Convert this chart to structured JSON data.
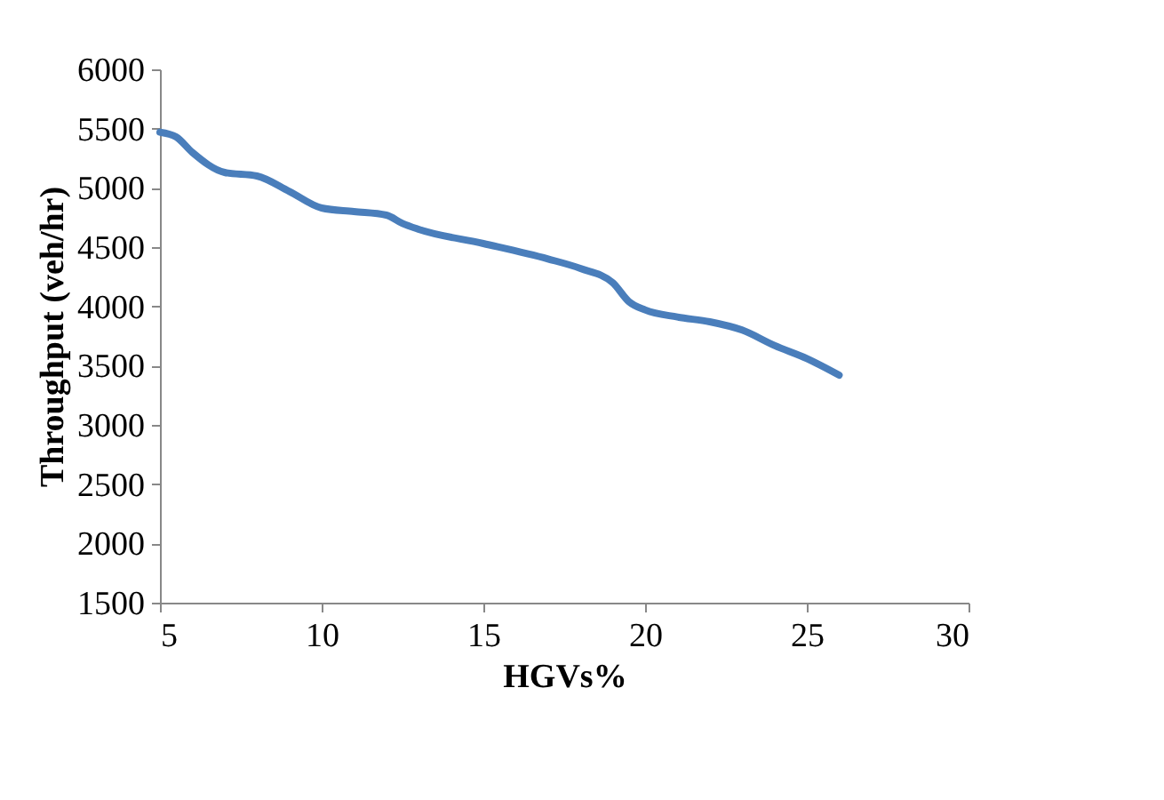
{
  "chart_data": {
    "type": "line",
    "xlabel": "HGVs%",
    "ylabel": "Throughput (veh/hr)",
    "x": [
      5,
      5.5,
      6,
      7,
      8,
      9,
      10,
      11,
      12,
      12.5,
      13,
      15,
      17,
      18,
      19,
      19.5,
      20,
      21,
      22,
      23,
      24,
      25,
      26
    ],
    "series": [
      {
        "color": "#4a7ebb",
        "values": [
          5470,
          5430,
          5300,
          5130,
          5100,
          4970,
          4830,
          4800,
          4770,
          4700,
          4650,
          4530,
          4400,
          4320,
          4200,
          4040,
          3970,
          3910,
          3870,
          3800,
          3670,
          3560,
          3420
        ]
      }
    ],
    "xlim": [
      5,
      30
    ],
    "xticks": [
      5,
      10,
      15,
      20,
      25,
      30
    ],
    "ylim": [
      1500,
      6000
    ],
    "yticks": [
      1500,
      2000,
      2500,
      3000,
      3500,
      4000,
      4500,
      5000,
      5500,
      6000
    ],
    "grid": false,
    "marker": "none",
    "line_style": "solid"
  }
}
